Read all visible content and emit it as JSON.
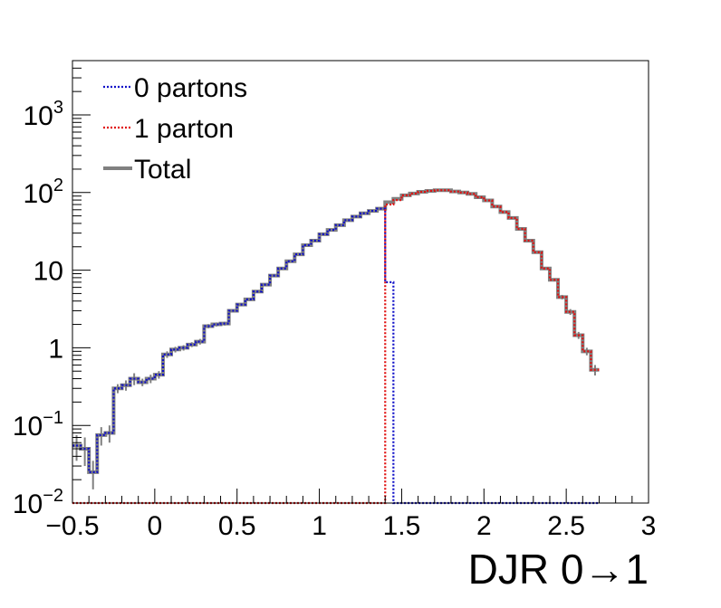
{
  "chart_data": {
    "type": "line",
    "subtype": "histogram-step",
    "title": "",
    "xlabel": "DJR 0→1",
    "ylabel": "",
    "xlim": [
      -0.5,
      3.0
    ],
    "ylim": [
      0.01,
      5000
    ],
    "yscale": "log",
    "grid": false,
    "legend_position": "top-left",
    "bin_width": 0.05,
    "x_ticks": [
      {
        "value": -0.5,
        "label": "−0.5"
      },
      {
        "value": 0,
        "label": "0"
      },
      {
        "value": 0.5,
        "label": "0.5"
      },
      {
        "value": 1,
        "label": "1"
      },
      {
        "value": 1.5,
        "label": "1.5"
      },
      {
        "value": 2,
        "label": "2"
      },
      {
        "value": 2.5,
        "label": "2.5"
      },
      {
        "value": 3,
        "label": "3"
      }
    ],
    "y_ticks": [
      {
        "value": 0.01,
        "base": "10",
        "exp": "−2",
        "label": ""
      },
      {
        "value": 0.1,
        "base": "10",
        "exp": "−1",
        "label": ""
      },
      {
        "value": 1,
        "base": "",
        "exp": "",
        "label": "1"
      },
      {
        "value": 10,
        "base": "",
        "exp": "",
        "label": "10"
      },
      {
        "value": 100,
        "base": "10",
        "exp": "2",
        "label": ""
      },
      {
        "value": 1000,
        "base": "10",
        "exp": "3",
        "label": ""
      }
    ],
    "series": [
      {
        "name": "Total",
        "color": "#808080",
        "style": "solid",
        "x_start": -0.5,
        "values": [
          0.055,
          0.05,
          0.025,
          0.075,
          0.08,
          0.3,
          0.33,
          0.4,
          0.36,
          0.4,
          0.45,
          0.82,
          0.95,
          1.0,
          1.1,
          1.2,
          1.9,
          2.0,
          2.05,
          3.0,
          3.6,
          4.2,
          5.3,
          6.5,
          8.5,
          10.5,
          13.0,
          16.0,
          21.0,
          24.0,
          29.0,
          33.0,
          38.0,
          44.0,
          49.0,
          54.0,
          58.0,
          62.0,
          75.0,
          83.0,
          92.0,
          97.0,
          102.0,
          105.0,
          107.0,
          107.0,
          103.0,
          100.0,
          96.0,
          87.0,
          79.0,
          66.0,
          56.0,
          47.0,
          34.0,
          24.0,
          17.0,
          10.5,
          7.5,
          4.5,
          2.9,
          1.45,
          0.9,
          0.52
        ],
        "errors": [
          0.02,
          0.02,
          0.01,
          0.02,
          0.02,
          0.04,
          0.05,
          0.07,
          0.04,
          0.05,
          0.05,
          0.08,
          0.08,
          0.08,
          0.08,
          0.1,
          0.12,
          0.12,
          0.12,
          0.15,
          0.18,
          0.2,
          0.2,
          0.25,
          0.3,
          0.35,
          0.4,
          0.45,
          0.5,
          0.6,
          0.6,
          0.7,
          0.7,
          0.8,
          0.8,
          0.9,
          0.9,
          1.0,
          1.0,
          1.1,
          1.1,
          1.2,
          1.2,
          1.2,
          1.2,
          1.2,
          1.2,
          1.2,
          1.1,
          1.1,
          1.0,
          1.0,
          0.9,
          0.8,
          0.7,
          0.6,
          0.5,
          0.4,
          0.35,
          0.3,
          0.25,
          0.15,
          0.1,
          0.08
        ]
      },
      {
        "name": "0 partons",
        "color": "#1010c8",
        "style": "dotted",
        "x_start": -0.5,
        "values": [
          0.055,
          0.05,
          0.025,
          0.075,
          0.08,
          0.3,
          0.33,
          0.4,
          0.36,
          0.4,
          0.45,
          0.82,
          0.95,
          1.0,
          1.1,
          1.2,
          1.9,
          2.0,
          2.05,
          3.0,
          3.6,
          4.2,
          5.3,
          6.5,
          8.5,
          10.5,
          13.0,
          16.0,
          21.0,
          24.0,
          29.0,
          33.0,
          38.0,
          44.0,
          49.0,
          54.0,
          58.0,
          62.0,
          7.0,
          0.01,
          0.01,
          0.01,
          0.01,
          0.01,
          0.01,
          0.01,
          0.01,
          0.01,
          0.01,
          0.01,
          0.01,
          0.01,
          0.01,
          0.01,
          0.01,
          0.01,
          0.01,
          0.01,
          0.01,
          0.01,
          0.01,
          0.01,
          0.01,
          0.01
        ]
      },
      {
        "name": "1 parton",
        "color": "#e01010",
        "style": "dotted",
        "x_start": -0.5,
        "values": [
          0.01,
          0.01,
          0.01,
          0.01,
          0.01,
          0.01,
          0.01,
          0.01,
          0.01,
          0.01,
          0.01,
          0.01,
          0.01,
          0.01,
          0.01,
          0.01,
          0.01,
          0.01,
          0.01,
          0.01,
          0.01,
          0.01,
          0.01,
          0.01,
          0.01,
          0.01,
          0.01,
          0.01,
          0.01,
          0.01,
          0.01,
          0.01,
          0.01,
          0.01,
          0.01,
          0.01,
          0.01,
          0.01,
          70.0,
          80.0,
          92.0,
          97.0,
          102.0,
          105.0,
          107.0,
          107.0,
          103.0,
          100.0,
          96.0,
          87.0,
          79.0,
          66.0,
          56.0,
          47.0,
          34.0,
          24.0,
          17.0,
          10.5,
          7.5,
          4.5,
          2.9,
          1.45,
          0.9,
          0.52
        ]
      }
    ]
  }
}
